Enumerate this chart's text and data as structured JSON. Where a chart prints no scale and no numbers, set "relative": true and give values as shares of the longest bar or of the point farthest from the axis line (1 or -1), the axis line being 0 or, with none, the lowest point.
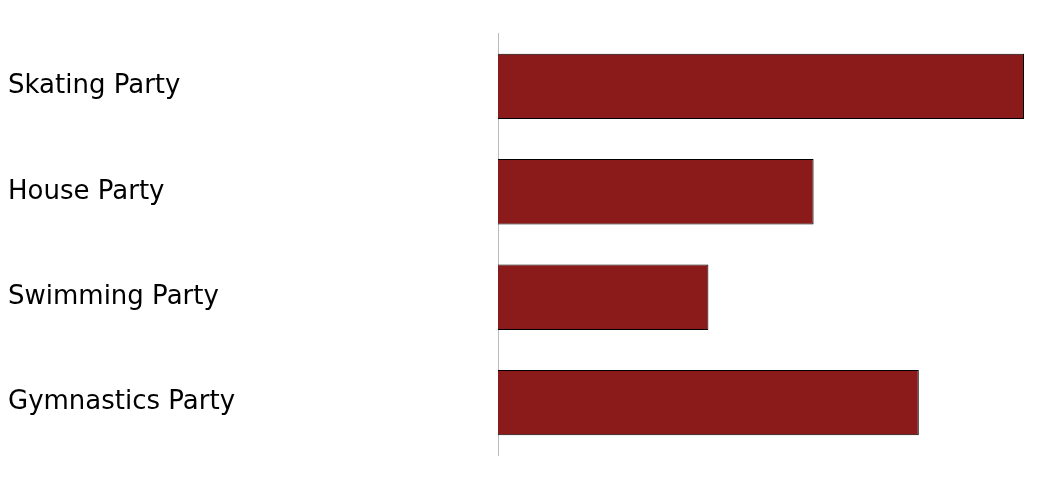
{
  "chart_data": {
    "type": "bar",
    "orientation": "horizontal",
    "relative": true,
    "categories": [
      "Skating Party",
      "House Party",
      "Swimming Party",
      "Gymnastics Party"
    ],
    "values": [
      1,
      0.6,
      0.4,
      0.8
    ],
    "color": "#8b1a1a"
  }
}
